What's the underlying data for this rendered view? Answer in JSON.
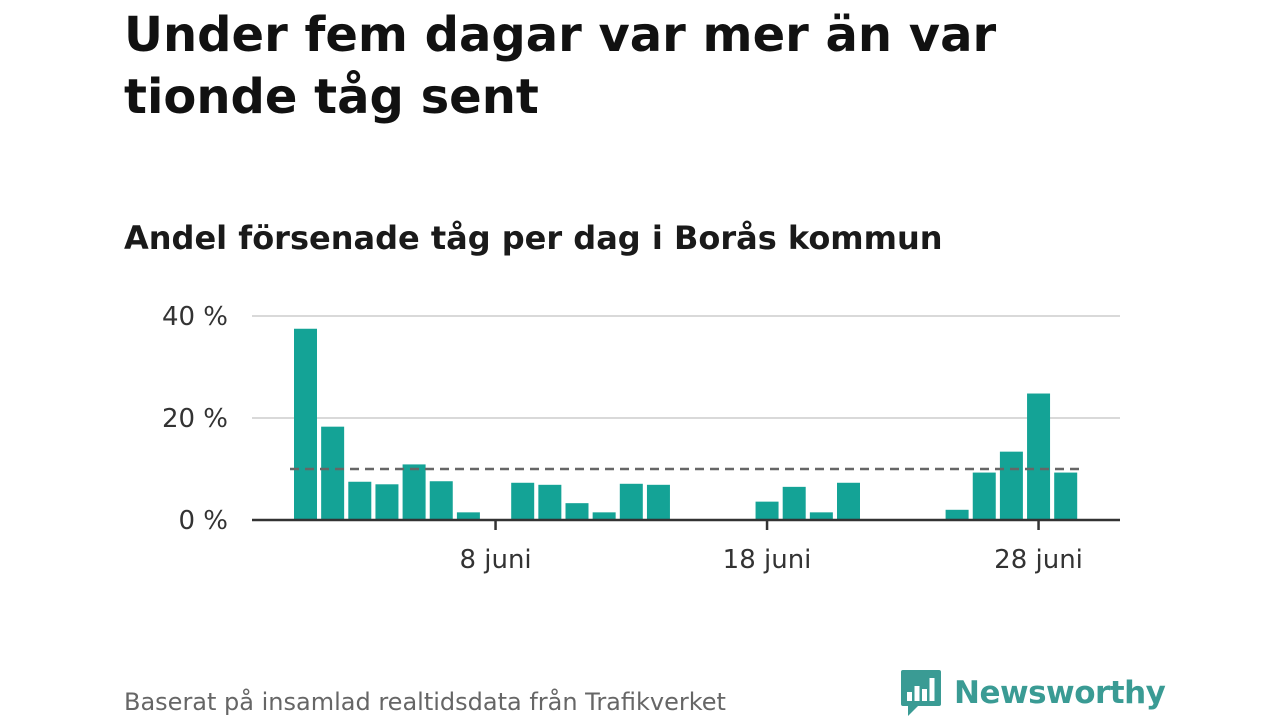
{
  "title": "Under fem dagar var mer än var tionde tåg sent",
  "subtitle": "Andel försenade tåg per dag i Borås kommun",
  "source": "Baserat på insamlad realtidsdata från Trafikverket",
  "brand": {
    "name": "Newsworthy",
    "color": "#3a9b94",
    "logo_icon": "bar-chart-speech-bubble-icon"
  },
  "colors": {
    "bar": "#14a396",
    "grid": "#d9d9d9",
    "axis": "#333333",
    "reference": "#666666"
  },
  "chart_data": {
    "type": "bar",
    "title": "Andel försenade tåg per dag i Borås kommun",
    "xlabel": "",
    "ylabel": "",
    "ylim": [
      0,
      40
    ],
    "y_ticks": [
      {
        "value": 0,
        "label": "0 %"
      },
      {
        "value": 20,
        "label": "20 %"
      },
      {
        "value": 40,
        "label": "40 %"
      }
    ],
    "x_ticks": [
      {
        "day": 8,
        "label": "8 juni"
      },
      {
        "day": 18,
        "label": "18 juni"
      },
      {
        "day": 28,
        "label": "28 juni"
      }
    ],
    "days": [
      1,
      2,
      3,
      4,
      5,
      6,
      7,
      8,
      9,
      10,
      11,
      12,
      13,
      14,
      15,
      16,
      17,
      18,
      19,
      20,
      21,
      22,
      23,
      24,
      25,
      26,
      27,
      28,
      29
    ],
    "values": [
      37.5,
      18.3,
      7.5,
      7.0,
      10.9,
      7.6,
      1.5,
      0,
      7.3,
      6.9,
      3.3,
      1.5,
      7.1,
      6.9,
      0,
      0,
      0,
      3.6,
      6.5,
      1.5,
      7.3,
      0,
      0,
      0,
      2.0,
      9.3,
      13.4,
      24.8,
      9.3
    ],
    "reference_line": {
      "value": 10,
      "style": "dashed"
    },
    "grid": true,
    "legend": "none"
  }
}
